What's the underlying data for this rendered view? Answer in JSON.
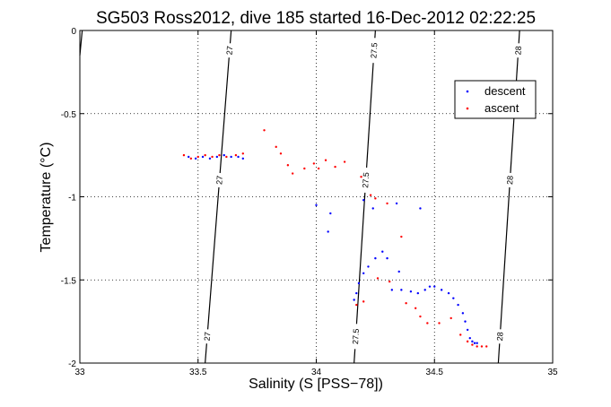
{
  "chart_data": {
    "type": "scatter",
    "title": "SG503 Ross2012, dive 185 started 16-Dec-2012 02:22:25",
    "xlabel": "Salinity (S [PSS−78])",
    "ylabel": "Temperature (°C)",
    "xlim": [
      33,
      35
    ],
    "ylim": [
      -2,
      0
    ],
    "xticks": [
      "33",
      "33.5",
      "34",
      "34.5",
      "35"
    ],
    "yticks": [
      "0",
      "-0.5",
      "-1",
      "-1.5",
      "-2"
    ],
    "grid": true,
    "legend_position": "top-right",
    "contours": [
      {
        "label": "27",
        "points": [
          [
            33.0,
            -0.15
          ],
          [
            33.01,
            0.0
          ]
        ]
      },
      {
        "label": "27",
        "points": [
          [
            33.53,
            -2.0
          ],
          [
            33.64,
            0.0
          ]
        ]
      },
      {
        "label": "27.5",
        "points": [
          [
            34.16,
            -2.0
          ],
          [
            34.25,
            0.0
          ]
        ]
      },
      {
        "label": "28",
        "points": [
          [
            34.77,
            -2.0
          ],
          [
            34.86,
            0.0
          ]
        ]
      }
    ],
    "series": [
      {
        "name": "descent",
        "color": "#0000ff",
        "points": [
          [
            33.46,
            -0.76
          ],
          [
            33.49,
            -0.77
          ],
          [
            33.52,
            -0.76
          ],
          [
            33.55,
            -0.77
          ],
          [
            33.58,
            -0.76
          ],
          [
            33.61,
            -0.75
          ],
          [
            33.64,
            -0.76
          ],
          [
            33.67,
            -0.76
          ],
          [
            33.69,
            -0.77
          ],
          [
            34.0,
            -1.05
          ],
          [
            34.06,
            -1.1
          ],
          [
            34.05,
            -1.21
          ],
          [
            34.2,
            -1.02
          ],
          [
            34.24,
            -1.07
          ],
          [
            34.34,
            -1.04
          ],
          [
            34.44,
            -1.07
          ],
          [
            34.16,
            -1.62
          ],
          [
            34.17,
            -1.58
          ],
          [
            34.18,
            -1.52
          ],
          [
            34.2,
            -1.46
          ],
          [
            34.22,
            -1.42
          ],
          [
            34.25,
            -1.37
          ],
          [
            34.28,
            -1.33
          ],
          [
            34.3,
            -1.37
          ],
          [
            34.35,
            -1.45
          ],
          [
            34.32,
            -1.56
          ],
          [
            34.36,
            -1.56
          ],
          [
            34.4,
            -1.57
          ],
          [
            34.43,
            -1.58
          ],
          [
            34.46,
            -1.56
          ],
          [
            34.48,
            -1.54
          ],
          [
            34.5,
            -1.54
          ],
          [
            34.53,
            -1.56
          ],
          [
            34.56,
            -1.58
          ],
          [
            34.58,
            -1.61
          ],
          [
            34.6,
            -1.65
          ],
          [
            34.62,
            -1.7
          ],
          [
            34.63,
            -1.75
          ],
          [
            34.64,
            -1.8
          ],
          [
            34.65,
            -1.85
          ],
          [
            34.66,
            -1.87
          ],
          [
            34.67,
            -1.88
          ],
          [
            34.68,
            -1.88
          ]
        ]
      },
      {
        "name": "ascent",
        "color": "#ff0000",
        "points": [
          [
            33.44,
            -0.75
          ],
          [
            33.47,
            -0.77
          ],
          [
            33.5,
            -0.76
          ],
          [
            33.53,
            -0.75
          ],
          [
            33.56,
            -0.76
          ],
          [
            33.59,
            -0.75
          ],
          [
            33.62,
            -0.76
          ],
          [
            33.66,
            -0.75
          ],
          [
            33.69,
            -0.74
          ],
          [
            33.78,
            -0.6
          ],
          [
            33.83,
            -0.7
          ],
          [
            33.85,
            -0.74
          ],
          [
            33.88,
            -0.81
          ],
          [
            33.9,
            -0.86
          ],
          [
            33.95,
            -0.83
          ],
          [
            33.99,
            -0.8
          ],
          [
            34.01,
            -0.83
          ],
          [
            34.04,
            -0.78
          ],
          [
            34.08,
            -0.82
          ],
          [
            34.12,
            -0.79
          ],
          [
            34.19,
            -0.88
          ],
          [
            34.23,
            -0.99
          ],
          [
            34.25,
            -1.01
          ],
          [
            34.3,
            -1.04
          ],
          [
            34.36,
            -1.24
          ],
          [
            34.17,
            -1.65
          ],
          [
            34.2,
            -1.63
          ],
          [
            34.26,
            -1.49
          ],
          [
            34.31,
            -1.51
          ],
          [
            34.38,
            -1.64
          ],
          [
            34.42,
            -1.67
          ],
          [
            34.44,
            -1.72
          ],
          [
            34.47,
            -1.76
          ],
          [
            34.52,
            -1.76
          ],
          [
            34.57,
            -1.73
          ],
          [
            34.61,
            -1.83
          ],
          [
            34.64,
            -1.87
          ],
          [
            34.66,
            -1.89
          ],
          [
            34.68,
            -1.9
          ],
          [
            34.7,
            -1.9
          ],
          [
            34.72,
            -1.9
          ]
        ]
      }
    ]
  }
}
